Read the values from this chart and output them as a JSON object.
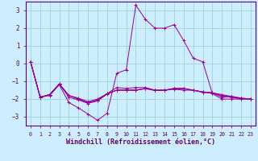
{
  "xlabel": "Windchill (Refroidissement éolien,°C)",
  "background_color": "#cceeff",
  "plot_bg_color": "#cceeff",
  "grid_color": "#99cccc",
  "line_color": "#990099",
  "spine_color": "#660066",
  "tick_color": "#660066",
  "xlim": [
    -0.5,
    23.5
  ],
  "ylim": [
    -3.5,
    3.5
  ],
  "yticks": [
    -3,
    -2,
    -1,
    0,
    1,
    2,
    3
  ],
  "xticks": [
    0,
    1,
    2,
    3,
    4,
    5,
    6,
    7,
    8,
    9,
    10,
    11,
    12,
    13,
    14,
    15,
    16,
    17,
    18,
    19,
    20,
    21,
    22,
    23
  ],
  "series": [
    [
      0.1,
      -1.9,
      -1.8,
      -1.2,
      -2.2,
      -2.5,
      -2.85,
      -3.2,
      -2.8,
      -0.55,
      -0.35,
      3.3,
      2.5,
      2.0,
      2.0,
      2.2,
      1.3,
      0.3,
      0.1,
      -1.7,
      -2.0,
      -2.0,
      -2.0,
      -2.0
    ],
    [
      0.1,
      -1.9,
      -1.75,
      -1.15,
      -1.8,
      -2.0,
      -2.2,
      -2.1,
      -1.7,
      -1.35,
      -1.4,
      -1.35,
      -1.35,
      -1.5,
      -1.5,
      -1.45,
      -1.5,
      -1.5,
      -1.6,
      -1.65,
      -1.8,
      -1.9,
      -2.0,
      -2.0
    ],
    [
      0.1,
      -1.9,
      -1.75,
      -1.15,
      -1.8,
      -1.95,
      -2.15,
      -2.0,
      -1.7,
      -1.5,
      -1.5,
      -1.5,
      -1.4,
      -1.5,
      -1.5,
      -1.4,
      -1.4,
      -1.5,
      -1.6,
      -1.65,
      -1.9,
      -1.85,
      -1.95,
      -2.0
    ],
    [
      0.1,
      -1.9,
      -1.75,
      -1.15,
      -1.8,
      -2.0,
      -2.2,
      -2.05,
      -1.7,
      -1.5,
      -1.5,
      -1.5,
      -1.4,
      -1.5,
      -1.5,
      -1.4,
      -1.4,
      -1.5,
      -1.6,
      -1.65,
      -1.75,
      -1.85,
      -1.95,
      -2.0
    ],
    [
      0.1,
      -1.9,
      -1.75,
      -1.15,
      -1.9,
      -2.05,
      -2.25,
      -2.1,
      -1.72,
      -1.5,
      -1.5,
      -1.5,
      -1.42,
      -1.52,
      -1.52,
      -1.42,
      -1.42,
      -1.52,
      -1.62,
      -1.67,
      -1.8,
      -1.87,
      -1.97,
      -2.0
    ]
  ]
}
